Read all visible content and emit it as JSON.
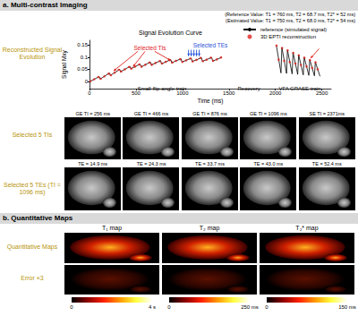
{
  "header_a": "a. Multi-contrast Imaging",
  "reference_value": "(Reference Value: T1 = 760 ms, T2 = 68.7 ms, T2* = 52 ms)",
  "estimated_value": "(Estimated Value: T1 = 750 ms, T2 = 68.0 ms, T2* = 54 ms)",
  "row_label_signal": "Reconstructed Signal Evolution",
  "chart_data": {
    "type": "line",
    "title": "Signal Evolution Curve",
    "x_label": "Time (ms)",
    "y_label": "Signal Mxy",
    "xlim": [
      0,
      2600
    ],
    "xticks": [
      0,
      500,
      1000,
      1500,
      2000,
      2500
    ],
    "ylim": [
      -0.03,
      0.17
    ],
    "yticks": [
      0,
      0.05,
      0.1,
      0.15
    ],
    "grid": false,
    "legend": "upper right",
    "annotations": [
      {
        "text": "Selected TIs",
        "color": "#e0201b"
      },
      {
        "text": "Selected TEs",
        "color": "#1f4fd8"
      },
      {
        "text": "Small-flip-angle train",
        "color": "#000000"
      },
      {
        "text": "Recovery",
        "color": "#000000"
      },
      {
        "text": "VFA GRASE train",
        "color": "#000000"
      }
    ],
    "series": [
      {
        "name": "reference (simulated signal)",
        "type": "line",
        "color": "#000000",
        "x": [
          5,
          105,
          115,
          215,
          225,
          325,
          335,
          435,
          445,
          545,
          555,
          655,
          665,
          765,
          775,
          875,
          885,
          985,
          995,
          1095,
          1105,
          1205,
          1215,
          1315,
          1325,
          1425,
          1700,
          2010,
          2060,
          2070,
          2120,
          2130,
          2180,
          2190,
          2240,
          2250,
          2300,
          2310,
          2360,
          2370,
          2420,
          2430,
          2480
        ],
        "values": [
          0.0,
          0.02,
          0.01,
          0.035,
          0.025,
          0.05,
          0.04,
          0.062,
          0.052,
          0.072,
          0.06,
          0.08,
          0.068,
          0.086,
          0.073,
          0.09,
          0.077,
          0.094,
          0.08,
          0.096,
          0.082,
          0.098,
          0.083,
          0.099,
          0.084,
          0.1,
          null,
          0.15,
          0.035,
          0.14,
          0.033,
          0.13,
          0.031,
          0.12,
          0.029,
          0.11,
          0.027,
          0.1,
          0.025,
          0.09,
          0.023,
          0.08,
          0.021
        ]
      },
      {
        "name": "3D EPTI reconstruction",
        "type": "scatter",
        "marker": "circle",
        "color": "#e0201b",
        "x": [
          10,
          50,
          95,
          120,
          160,
          205,
          230,
          270,
          315,
          340,
          380,
          425,
          450,
          490,
          535,
          560,
          600,
          645,
          670,
          710,
          755,
          780,
          820,
          865,
          890,
          930,
          975,
          1000,
          1040,
          1085,
          1110,
          1150,
          1195,
          1220,
          1260,
          1305,
          1330,
          1370,
          1415,
          2012,
          2035,
          2072,
          2095,
          2132,
          2155,
          2192,
          2215,
          2252,
          2275,
          2312,
          2335,
          2372,
          2395,
          2432,
          2455
        ],
        "values": [
          0.001,
          0.009,
          0.018,
          0.011,
          0.021,
          0.032,
          0.026,
          0.036,
          0.048,
          0.041,
          0.05,
          0.06,
          0.053,
          0.061,
          0.07,
          0.061,
          0.069,
          0.078,
          0.069,
          0.076,
          0.084,
          0.074,
          0.081,
          0.088,
          0.078,
          0.085,
          0.092,
          0.081,
          0.087,
          0.095,
          0.083,
          0.089,
          0.097,
          0.084,
          0.09,
          0.098,
          0.085,
          0.091,
          0.099,
          0.148,
          0.09,
          0.138,
          0.085,
          0.128,
          0.08,
          0.118,
          0.074,
          0.108,
          0.068,
          0.098,
          0.062,
          0.088,
          0.056,
          0.079,
          0.05
        ]
      }
    ]
  },
  "ti_row": {
    "label": "Selected 5 TIs",
    "images": [
      "GE TI = 256 ms",
      "GE TI = 466 ms",
      "GE TI = 876 ms",
      "GE TI = 1096 ms",
      "SE TI = 2371ms"
    ]
  },
  "te_row": {
    "label": "Selected 5 TEs (TI = 1096 ms)",
    "images": [
      "TE = 14.9 ms",
      "TE = 24.3 ms",
      "TE = 33.7 ms",
      "TE = 43.0 ms",
      "TE = 52.4 ms"
    ]
  },
  "header_b": "b. Quantitative Maps",
  "maps": {
    "row_labels": [
      "Quantitative Maps",
      "Error ×3"
    ],
    "columns": [
      {
        "title": "T₁ map",
        "colorbar": {
          "range": [
            0,
            4
          ],
          "ticks": [
            0,
            {
              "value": 4,
              "label": "4 s"
            }
          ]
        }
      },
      {
        "title": "T₂ map",
        "colorbar": {
          "range": [
            0,
            250
          ],
          "ticks": [
            0,
            {
              "value": 250,
              "label": "250 ms"
            }
          ]
        }
      },
      {
        "title": "T₂* map",
        "colorbar": {
          "range": [
            0,
            150
          ],
          "ticks": [
            0,
            {
              "value": 150,
              "label": "150 ms"
            }
          ]
        }
      }
    ]
  }
}
